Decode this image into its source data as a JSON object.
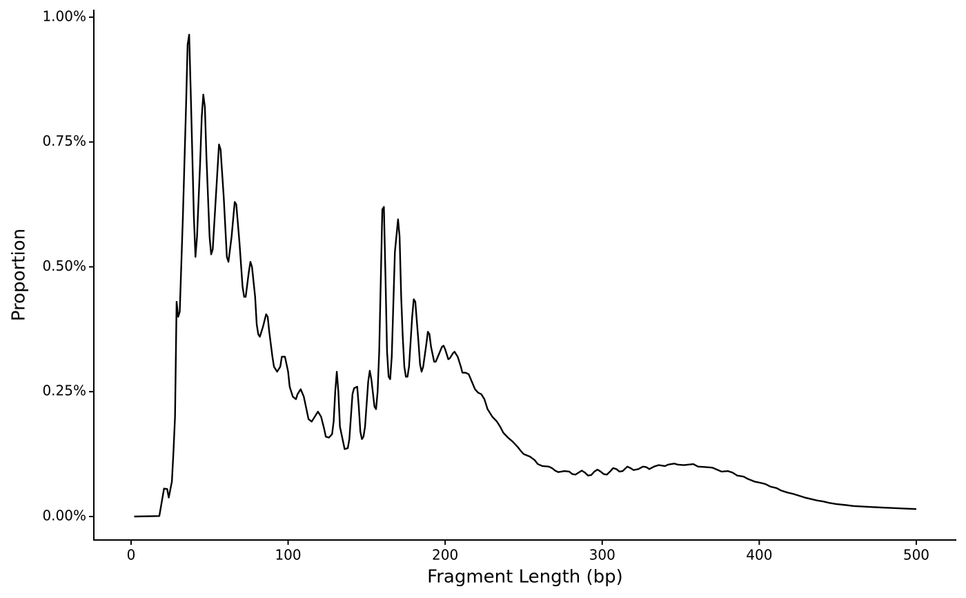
{
  "chart_data": {
    "type": "line",
    "xlabel": "Fragment Length (bp)",
    "ylabel": "Proportion",
    "color": "#000000",
    "x": [
      2,
      18,
      21,
      23,
      24,
      26,
      27,
      28,
      29,
      30,
      31,
      33,
      35,
      36,
      37,
      38,
      40,
      41,
      42,
      44,
      45,
      46,
      47,
      48,
      50,
      51,
      52,
      54,
      56,
      57,
      59,
      61,
      62,
      64,
      66,
      67,
      69,
      71,
      72,
      73,
      75,
      76,
      77,
      79,
      80,
      81,
      82,
      84,
      86,
      87,
      88,
      90,
      91,
      93,
      95,
      96,
      98,
      100,
      101,
      103,
      105,
      106,
      108,
      110,
      112,
      113,
      115,
      117,
      119,
      121,
      123,
      124,
      126,
      128,
      129,
      130,
      131,
      132,
      133,
      135,
      136,
      138,
      139,
      141,
      142,
      144,
      145,
      146,
      147,
      148,
      149,
      151,
      152,
      153,
      155,
      156,
      157,
      158,
      160,
      161,
      162,
      163,
      164,
      165,
      166,
      168,
      170,
      171,
      172,
      173,
      174,
      175,
      176,
      177,
      179,
      180,
      181,
      182,
      183,
      184,
      185,
      186,
      188,
      189,
      190,
      191,
      193,
      194,
      196,
      198,
      199,
      200,
      202,
      203,
      205,
      206,
      208,
      210,
      211,
      213,
      215,
      217,
      219,
      221,
      223,
      225,
      227,
      230,
      233,
      235,
      237,
      240,
      243,
      246,
      248,
      250,
      254,
      257,
      259,
      262,
      266,
      268,
      270,
      272,
      276,
      279,
      281,
      283,
      287,
      289,
      291,
      293,
      295,
      297,
      299,
      301,
      303,
      305,
      307,
      309,
      311,
      313,
      316,
      318,
      320,
      323,
      326,
      328,
      330,
      333,
      336,
      340,
      342,
      346,
      348,
      352,
      355,
      358,
      361,
      366,
      370,
      373,
      376,
      380,
      383,
      386,
      390,
      393,
      397,
      400,
      404,
      407,
      411,
      414,
      418,
      422,
      425,
      429,
      433,
      437,
      441,
      445,
      449,
      455,
      460,
      466,
      472,
      478,
      485,
      492,
      500
    ],
    "values": [
      0,
      0.001,
      0.056,
      0.055,
      0.038,
      0.07,
      0.13,
      0.2,
      0.43,
      0.4,
      0.41,
      0.6,
      0.82,
      0.945,
      0.965,
      0.85,
      0.6,
      0.52,
      0.56,
      0.71,
      0.8,
      0.845,
      0.82,
      0.72,
      0.56,
      0.525,
      0.535,
      0.64,
      0.745,
      0.735,
      0.64,
      0.52,
      0.51,
      0.56,
      0.63,
      0.625,
      0.55,
      0.46,
      0.44,
      0.44,
      0.49,
      0.51,
      0.5,
      0.44,
      0.385,
      0.365,
      0.36,
      0.38,
      0.405,
      0.4,
      0.37,
      0.32,
      0.3,
      0.29,
      0.3,
      0.32,
      0.32,
      0.29,
      0.26,
      0.24,
      0.235,
      0.245,
      0.255,
      0.24,
      0.21,
      0.195,
      0.19,
      0.2,
      0.21,
      0.2,
      0.175,
      0.16,
      0.158,
      0.165,
      0.19,
      0.25,
      0.29,
      0.25,
      0.18,
      0.15,
      0.135,
      0.137,
      0.155,
      0.245,
      0.257,
      0.26,
      0.22,
      0.17,
      0.155,
      0.16,
      0.18,
      0.27,
      0.292,
      0.275,
      0.22,
      0.215,
      0.25,
      0.33,
      0.615,
      0.62,
      0.48,
      0.33,
      0.28,
      0.275,
      0.32,
      0.53,
      0.595,
      0.56,
      0.44,
      0.36,
      0.3,
      0.28,
      0.28,
      0.3,
      0.4,
      0.435,
      0.43,
      0.39,
      0.35,
      0.305,
      0.29,
      0.3,
      0.345,
      0.37,
      0.365,
      0.34,
      0.31,
      0.31,
      0.325,
      0.34,
      0.342,
      0.335,
      0.315,
      0.317,
      0.327,
      0.33,
      0.32,
      0.3,
      0.288,
      0.288,
      0.285,
      0.27,
      0.255,
      0.248,
      0.245,
      0.235,
      0.215,
      0.2,
      0.19,
      0.18,
      0.168,
      0.158,
      0.15,
      0.14,
      0.132,
      0.125,
      0.12,
      0.113,
      0.105,
      0.101,
      0.1,
      0.097,
      0.092,
      0.089,
      0.091,
      0.09,
      0.085,
      0.084,
      0.092,
      0.088,
      0.082,
      0.083,
      0.09,
      0.094,
      0.09,
      0.085,
      0.084,
      0.09,
      0.097,
      0.095,
      0.09,
      0.091,
      0.1,
      0.097,
      0.093,
      0.095,
      0.1,
      0.099,
      0.095,
      0.1,
      0.103,
      0.101,
      0.104,
      0.106,
      0.104,
      0.103,
      0.104,
      0.105,
      0.1,
      0.099,
      0.098,
      0.094,
      0.09,
      0.091,
      0.088,
      0.082,
      0.08,
      0.075,
      0.07,
      0.068,
      0.065,
      0.06,
      0.057,
      0.052,
      0.048,
      0.045,
      0.042,
      0.038,
      0.035,
      0.032,
      0.03,
      0.027,
      0.025,
      0.023,
      0.021,
      0.02,
      0.019,
      0.018,
      0.017,
      0.016,
      0.015
    ],
    "xlim": [
      -23.7,
      525.5
    ],
    "xticks": [
      0,
      100,
      200,
      300,
      400,
      500
    ],
    "ylim": [
      -0.047,
      1.015
    ],
    "yticks": [
      {
        "value": 0,
        "label": "0.00%"
      },
      {
        "value": 0.25,
        "label": "0.25%"
      },
      {
        "value": 0.5,
        "label": "0.50%"
      },
      {
        "value": 0.75,
        "label": "0.75%"
      },
      {
        "value": 1,
        "label": "1.00%"
      }
    ],
    "grid": false
  }
}
